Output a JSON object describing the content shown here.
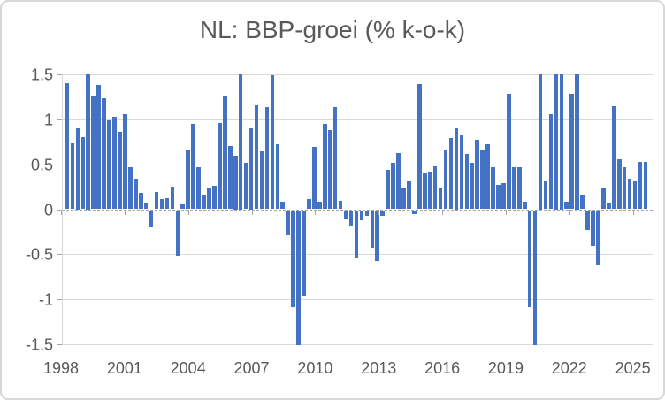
{
  "chart_data": {
    "type": "bar",
    "title": "NL: BBP-groei (% k-o-k)",
    "xlabel": "",
    "ylabel": "",
    "ylim": [
      -1.5,
      1.5
    ],
    "values_clipped_to_ylim": true,
    "grid": true,
    "legend_position": "none",
    "y_ticks": [
      {
        "label": "1.5",
        "value": 1.5
      },
      {
        "label": "1",
        "value": 1.0
      },
      {
        "label": "0.5",
        "value": 0.5
      },
      {
        "label": "0",
        "value": 0.0
      },
      {
        "label": "-0.5",
        "value": -0.5
      },
      {
        "label": "-1",
        "value": -1.0
      },
      {
        "label": "-1.5",
        "value": -1.5
      }
    ],
    "x_tick_labels": [
      "1998",
      "2001",
      "2004",
      "2007",
      "2010",
      "2013",
      "2016",
      "2019",
      "2022",
      "2025"
    ],
    "x_tick_years_interval": 3,
    "series": [
      {
        "year": 1998,
        "values": [
          1.4,
          0.73,
          0.9,
          0.8
        ]
      },
      {
        "year": 1999,
        "values": [
          1.5,
          1.25,
          1.38,
          1.23
        ]
      },
      {
        "year": 2000,
        "values": [
          0.99,
          1.03,
          0.86,
          1.06
        ]
      },
      {
        "year": 2001,
        "values": [
          0.47,
          0.34,
          0.18,
          0.07
        ]
      },
      {
        "year": 2002,
        "values": [
          -0.18,
          0.19,
          0.11,
          0.12
        ]
      },
      {
        "year": 2003,
        "values": [
          0.25,
          -0.51,
          0.05,
          0.66
        ]
      },
      {
        "year": 2004,
        "values": [
          0.95,
          0.47,
          0.16,
          0.24
        ]
      },
      {
        "year": 2005,
        "values": [
          0.26,
          0.96,
          1.25,
          0.7
        ]
      },
      {
        "year": 2006,
        "values": [
          0.6,
          1.5,
          0.52,
          0.9
        ]
      },
      {
        "year": 2007,
        "values": [
          1.16,
          0.64,
          1.14,
          1.49
        ]
      },
      {
        "year": 2008,
        "values": [
          0.72,
          0.08,
          -0.27,
          -1.08
        ]
      },
      {
        "year": 2009,
        "values": [
          -1.5,
          -0.95,
          0.11,
          0.69
        ]
      },
      {
        "year": 2010,
        "values": [
          0.08,
          0.95,
          0.88,
          1.14
        ]
      },
      {
        "year": 2011,
        "values": [
          0.09,
          -0.09,
          -0.17,
          -0.54
        ]
      },
      {
        "year": 2012,
        "values": [
          -0.11,
          -0.06,
          -0.42,
          -0.57
        ]
      },
      {
        "year": 2013,
        "values": [
          -0.06,
          0.44,
          0.52,
          0.62
        ]
      },
      {
        "year": 2014,
        "values": [
          0.24,
          0.32,
          -0.04,
          1.39
        ]
      },
      {
        "year": 2015,
        "values": [
          0.41,
          0.42,
          0.48,
          0.24
        ]
      },
      {
        "year": 2016,
        "values": [
          0.66,
          0.79,
          0.9,
          0.83
        ]
      },
      {
        "year": 2017,
        "values": [
          0.61,
          0.52,
          0.77,
          0.66
        ]
      },
      {
        "year": 2018,
        "values": [
          0.72,
          0.47,
          0.27,
          0.29
        ]
      },
      {
        "year": 2019,
        "values": [
          1.28,
          0.47,
          0.47,
          0.08
        ]
      },
      {
        "year": 2020,
        "values": [
          -1.08,
          -1.5,
          1.5,
          0.32
        ]
      },
      {
        "year": 2021,
        "values": [
          1.06,
          1.5,
          1.5,
          0.08
        ]
      },
      {
        "year": 2022,
        "values": [
          1.28,
          1.5,
          0.16,
          -0.22
        ]
      },
      {
        "year": 2023,
        "values": [
          -0.4,
          -0.61,
          0.24,
          0.07
        ]
      },
      {
        "year": 2024,
        "values": [
          1.15,
          0.56,
          0.47,
          0.34
        ]
      },
      {
        "year": 2025,
        "values": [
          0.32,
          0.53,
          0.53
        ]
      }
    ]
  },
  "colors": {
    "bar": "#4472C4",
    "title_text": "#595959",
    "axis_text": "#595959",
    "gridline": "#D9D9D9",
    "zero_line": "#A6A6A6",
    "tick": "#A6A6A6",
    "frame_border": "#D7D7D7",
    "background": "#FFFFFF"
  }
}
